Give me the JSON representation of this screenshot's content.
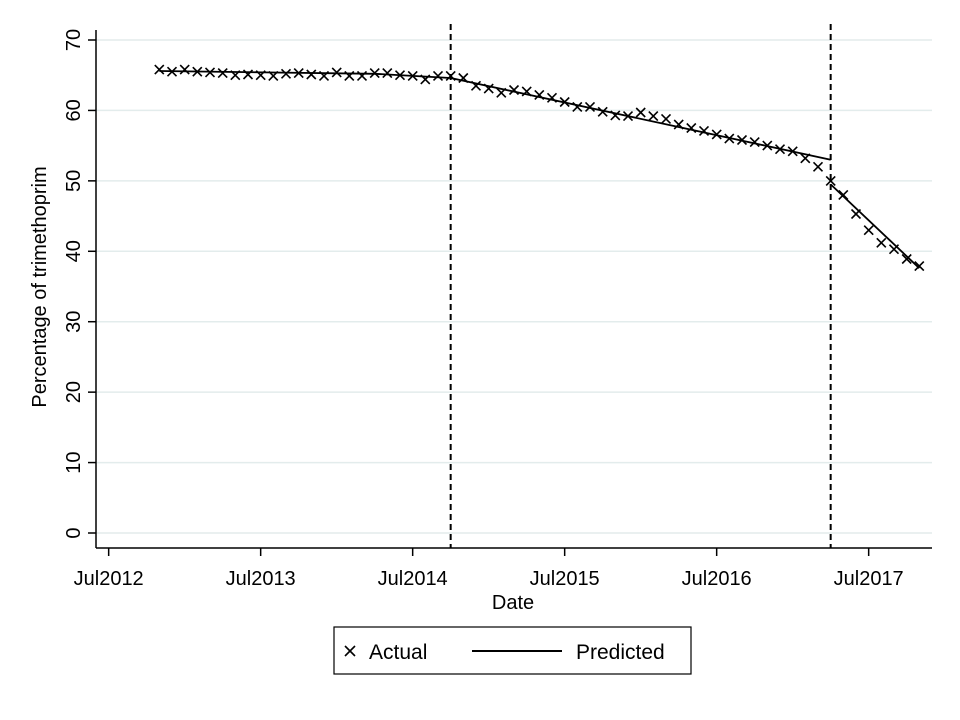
{
  "chart_data": {
    "type": "line",
    "xlabel": "Date",
    "ylabel": "Percentage of trimethoprim",
    "x_ticks": [
      {
        "date": "2012-07",
        "label": "Jul2012"
      },
      {
        "date": "2013-07",
        "label": "Jul2013"
      },
      {
        "date": "2014-07",
        "label": "Jul2014"
      },
      {
        "date": "2015-07",
        "label": "Jul2015"
      },
      {
        "date": "2016-07",
        "label": "Jul2016"
      },
      {
        "date": "2017-07",
        "label": "Jul2017"
      }
    ],
    "xlim": [
      "2012-06",
      "2017-12"
    ],
    "ylim": [
      0,
      70
    ],
    "y_ticks": [
      0,
      10,
      20,
      30,
      40,
      50,
      60,
      70
    ],
    "grid": "horizontal",
    "vlines": [
      "2014-10",
      "2017-04"
    ],
    "series": [
      {
        "name": "Actual",
        "marker": "x",
        "points": [
          [
            "2012-11",
            65.8
          ],
          [
            "2012-12",
            65.5
          ],
          [
            "2013-01",
            65.8
          ],
          [
            "2013-02",
            65.5
          ],
          [
            "2013-03",
            65.4
          ],
          [
            "2013-04",
            65.3
          ],
          [
            "2013-05",
            65.0
          ],
          [
            "2013-06",
            65.1
          ],
          [
            "2013-07",
            65.0
          ],
          [
            "2013-08",
            64.9
          ],
          [
            "2013-09",
            65.2
          ],
          [
            "2013-10",
            65.3
          ],
          [
            "2013-11",
            65.1
          ],
          [
            "2013-12",
            64.9
          ],
          [
            "2014-01",
            65.4
          ],
          [
            "2014-02",
            64.9
          ],
          [
            "2014-03",
            64.9
          ],
          [
            "2014-04",
            65.3
          ],
          [
            "2014-05",
            65.3
          ],
          [
            "2014-06",
            65.0
          ],
          [
            "2014-07",
            64.9
          ],
          [
            "2014-08",
            64.4
          ],
          [
            "2014-09",
            64.9
          ],
          [
            "2014-10",
            64.9
          ],
          [
            "2014-11",
            64.6
          ],
          [
            "2014-12",
            63.5
          ],
          [
            "2015-01",
            63.1
          ],
          [
            "2015-02",
            62.5
          ],
          [
            "2015-03",
            62.9
          ],
          [
            "2015-04",
            62.7
          ],
          [
            "2015-05",
            62.2
          ],
          [
            "2015-06",
            61.8
          ],
          [
            "2015-07",
            61.2
          ],
          [
            "2015-08",
            60.5
          ],
          [
            "2015-09",
            60.5
          ],
          [
            "2015-10",
            59.8
          ],
          [
            "2015-11",
            59.3
          ],
          [
            "2015-12",
            59.2
          ],
          [
            "2016-01",
            59.7
          ],
          [
            "2016-02",
            59.2
          ],
          [
            "2016-03",
            58.8
          ],
          [
            "2016-04",
            58.0
          ],
          [
            "2016-05",
            57.5
          ],
          [
            "2016-06",
            57.1
          ],
          [
            "2016-07",
            56.6
          ],
          [
            "2016-08",
            56.0
          ],
          [
            "2016-09",
            55.8
          ],
          [
            "2016-10",
            55.5
          ],
          [
            "2016-11",
            55.0
          ],
          [
            "2016-12",
            54.5
          ],
          [
            "2017-01",
            54.2
          ],
          [
            "2017-02",
            53.2
          ],
          [
            "2017-03",
            52.0
          ],
          [
            "2017-04",
            50.0
          ],
          [
            "2017-05",
            48.0
          ],
          [
            "2017-06",
            45.3
          ],
          [
            "2017-07",
            43.0
          ],
          [
            "2017-08",
            41.2
          ],
          [
            "2017-09",
            40.3
          ],
          [
            "2017-10",
            38.9
          ],
          [
            "2017-11",
            37.9
          ]
        ]
      },
      {
        "name": "Predicted",
        "marker": "line",
        "segments": [
          [
            [
              "2012-11",
              65.6
            ],
            [
              "2014-04",
              65.2
            ],
            [
              "2014-10",
              64.6
            ]
          ],
          [
            [
              "2014-10",
              64.6
            ],
            [
              "2017-04",
              53.0
            ]
          ],
          [
            [
              "2017-04",
              49.5
            ],
            [
              "2017-11",
              37.6
            ]
          ]
        ]
      }
    ],
    "legend": {
      "position": "bottom-center",
      "items": [
        "Actual",
        "Predicted"
      ]
    }
  }
}
